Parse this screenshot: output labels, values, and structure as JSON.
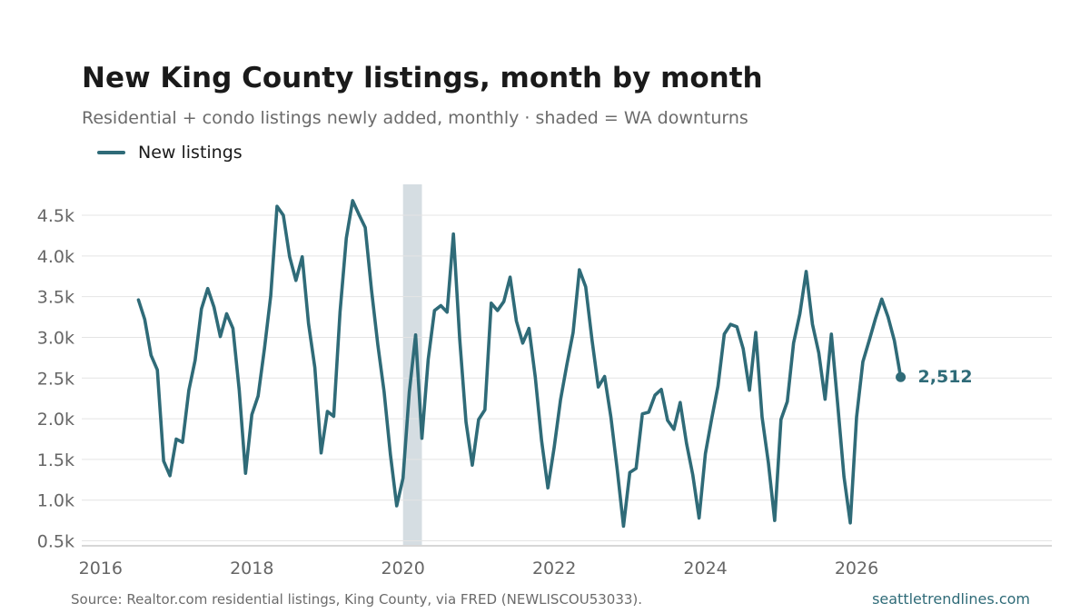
{
  "title": "New King County listings, month by month",
  "subtitle": "Residential + condo listings newly added, monthly · shaded = WA downturns",
  "legend_label": "New listings",
  "source": "Source: Realtor.com residential listings, King County, via FRED (NEWLISCOU53033).",
  "site": "seattletrendlines.com",
  "colors": {
    "line": "#2f6b78",
    "shade": "#d5dde2",
    "grid": "#e4e4e4",
    "axis_text": "#666666"
  },
  "chart_data": {
    "type": "line",
    "title": "New King County listings, month by month",
    "xlabel": "",
    "ylabel": "",
    "x_range": [
      "2015-10",
      "2028-08"
    ],
    "ylim": [
      450,
      4880
    ],
    "x_ticks": [
      "2016",
      "2018",
      "2020",
      "2022",
      "2024",
      "2026"
    ],
    "y_ticks": [
      {
        "value": 500,
        "label": "0.5k"
      },
      {
        "value": 1000,
        "label": "1.0k"
      },
      {
        "value": 1500,
        "label": "1.5k"
      },
      {
        "value": 2000,
        "label": "2.0k"
      },
      {
        "value": 2500,
        "label": "2.5k"
      },
      {
        "value": 3000,
        "label": "3.0k"
      },
      {
        "value": 3500,
        "label": "3.5k"
      },
      {
        "value": 4000,
        "label": "4.0k"
      },
      {
        "value": 4500,
        "label": "4.5k"
      }
    ],
    "grid": true,
    "legend_position": "top-left",
    "shaded_periods": [
      {
        "start": "2020-01",
        "end": "2020-04"
      }
    ],
    "start_month": "2016-07",
    "end_month": "2026-08",
    "series": [
      {
        "name": "New listings",
        "values": [
          3460,
          3220,
          2780,
          2600,
          1480,
          1300,
          1750,
          1710,
          2350,
          2720,
          3350,
          3600,
          3370,
          3010,
          3290,
          3110,
          2350,
          1330,
          2050,
          2280,
          2860,
          3510,
          4610,
          4500,
          3990,
          3700,
          3990,
          3170,
          2630,
          1580,
          2090,
          2030,
          3310,
          4220,
          4680,
          4510,
          4350,
          3580,
          2910,
          2330,
          1560,
          930,
          1270,
          2330,
          3030,
          1760,
          2730,
          3330,
          3390,
          3310,
          4270,
          2980,
          1960,
          1430,
          1990,
          2110,
          3420,
          3330,
          3440,
          3740,
          3200,
          2930,
          3110,
          2510,
          1730,
          1150,
          1650,
          2230,
          2660,
          3060,
          3830,
          3620,
          2970,
          2390,
          2520,
          2020,
          1380,
          680,
          1340,
          1390,
          2060,
          2080,
          2290,
          2360,
          1980,
          1870,
          2200,
          1700,
          1310,
          780,
          1570,
          2000,
          2400,
          3040,
          3160,
          3130,
          2860,
          2350,
          3060,
          2020,
          1460,
          750,
          1990,
          2210,
          2930,
          3290,
          3810,
          3160,
          2810,
          2240,
          3040,
          2180,
          1290,
          720,
          2020,
          2700,
          2960,
          3230,
          3470,
          3250,
          2960,
          2512
        ]
      }
    ],
    "last_value_label": "2,512"
  }
}
